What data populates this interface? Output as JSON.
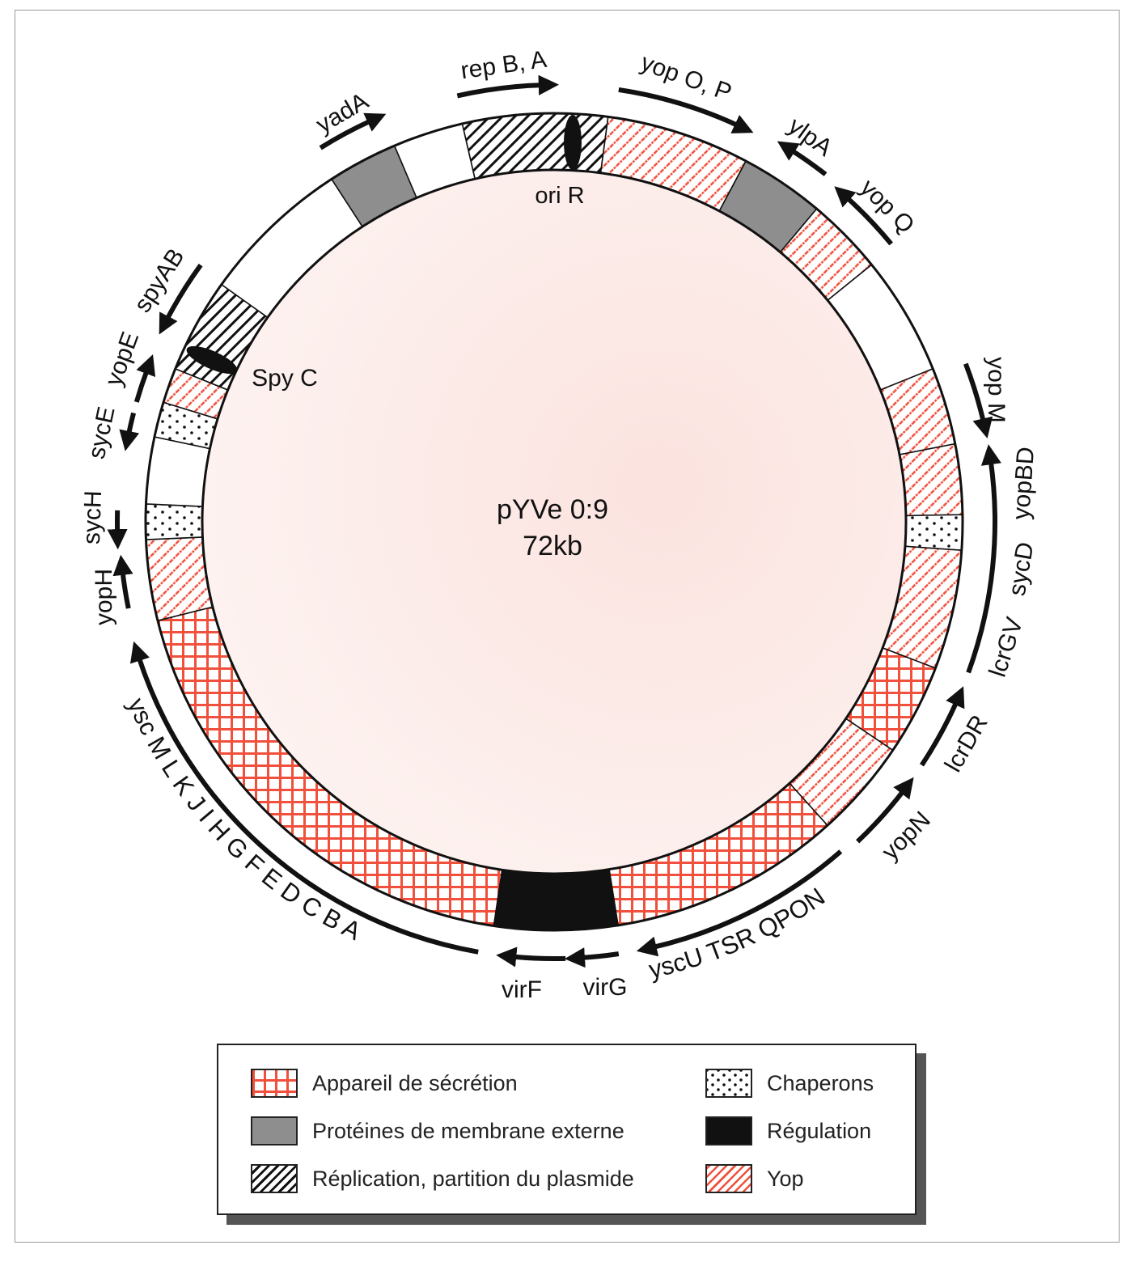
{
  "plasmid": {
    "name": "pYVe 0:9",
    "size": "72kb"
  },
  "colors": {
    "red": "#f0503c",
    "grey": "#8e8e8e",
    "black": "#111111",
    "inner_fill": "#fbe8e5"
  },
  "features": {
    "ori": "ori R",
    "spy": "Spy C"
  },
  "genome_map": {
    "segments": [
      {
        "category": "replication"
      },
      {
        "category": "yop"
      },
      {
        "category": "membrane"
      },
      {
        "category": "yop"
      },
      {
        "category": "none"
      },
      {
        "category": "yop"
      },
      {
        "category": "yop"
      },
      {
        "category": "chaperone"
      },
      {
        "category": "yop"
      },
      {
        "category": "secretion"
      },
      {
        "category": "yop"
      },
      {
        "category": "secretion"
      },
      {
        "category": "regulation"
      },
      {
        "category": "secretion"
      },
      {
        "category": "yop"
      },
      {
        "category": "chaperone"
      },
      {
        "category": "none"
      },
      {
        "category": "chaperone"
      },
      {
        "category": "yop"
      },
      {
        "category": "replication"
      },
      {
        "category": "none"
      },
      {
        "category": "membrane"
      },
      {
        "category": "none"
      }
    ]
  },
  "genes": {
    "repBA": "rep B, A",
    "yopOP": "yop O, P",
    "ylpA": "ylpA",
    "yopQ": "yop Q",
    "yopM": "yop M",
    "yopBD": "yopBD",
    "sycD": "sycD",
    "lcrGV": "lcrGV",
    "lcrDR": "lcrDR",
    "yopN": "yopN",
    "yscUQ": "yscU TSR QPON",
    "virG": "virG",
    "virF": "virF",
    "yscMA": "ysc M L K J I H G F E D C B A",
    "yopH": "yopH",
    "sycH": "sycH",
    "sycE": "sycE",
    "yopE": "yopE",
    "spyAB": "spyAB",
    "yadA": "yadA"
  },
  "legend": {
    "items": [
      {
        "label": "Appareil de sécrétion",
        "category": "secretion"
      },
      {
        "label": "Protéines de membrane externe",
        "category": "membrane"
      },
      {
        "label": "Réplication, partition du plasmide",
        "category": "replication"
      },
      {
        "label": "Chaperons",
        "category": "chaperone"
      },
      {
        "label": "Régulation",
        "category": "regulation"
      },
      {
        "label": "Yop",
        "category": "yop"
      }
    ]
  }
}
